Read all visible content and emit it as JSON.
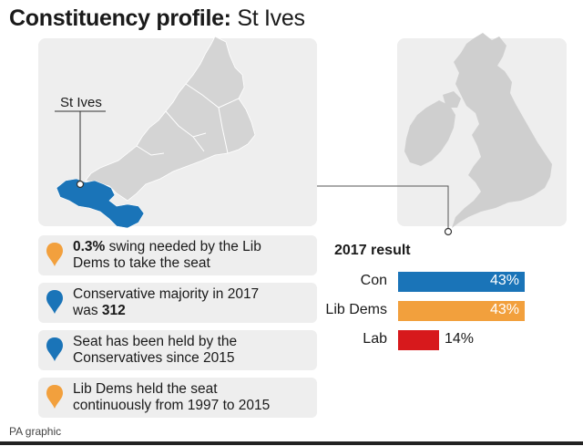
{
  "title": {
    "bold": "Constituency profile:",
    "light": "St Ives"
  },
  "map": {
    "locator_label": "St Ives",
    "colors": {
      "constituency": "#1a74b8",
      "county": "#d4d4d4",
      "land": "#cfcfcf",
      "panel": "#eeeeee"
    }
  },
  "facts": [
    {
      "pin_color": "#f2a03d",
      "pin_icon": "orange-pin-icon",
      "bold_prefix": "0.3%",
      "line1": " swing needed by the Lib",
      "line2": "Dems to take the seat"
    },
    {
      "pin_color": "#1a74b8",
      "pin_icon": "blue-pin-icon",
      "line1": "Conservative majority in 2017",
      "line2_prefix": "was ",
      "line2_bold": "312"
    },
    {
      "pin_color": "#1a74b8",
      "pin_icon": "blue-pin-icon",
      "line1": "Seat has been held by the",
      "line2": "Conservatives since 2015"
    },
    {
      "pin_color": "#f2a03d",
      "pin_icon": "orange-pin-icon",
      "line1": "Lib Dems held the seat",
      "line2": "continuously from 1997 to 2015"
    }
  ],
  "results": {
    "title": "2017 result",
    "chart_data": {
      "type": "bar",
      "orientation": "horizontal",
      "title": "2017 result",
      "categories": [
        "Con",
        "Lib Dems",
        "Lab"
      ],
      "values": [
        43,
        43,
        14
      ],
      "value_labels": [
        "43%",
        "43%",
        "14%"
      ],
      "colors": [
        "#1a74b8",
        "#f2a03d",
        "#d7191c"
      ],
      "xlim": [
        0,
        100
      ]
    }
  },
  "source": "PA graphic"
}
